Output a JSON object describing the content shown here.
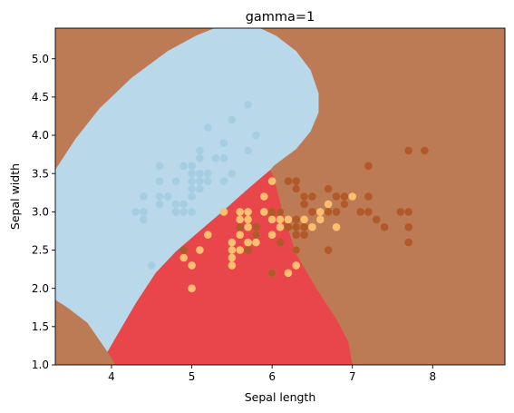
{
  "chart_data": {
    "type": "scatter",
    "title": "gamma=1",
    "xlabel": "Sepal length",
    "ylabel": "Sepal width",
    "xlim": [
      3.3,
      8.9
    ],
    "ylim": [
      1.0,
      5.4
    ],
    "xticks": [
      4,
      5,
      6,
      7,
      8
    ],
    "yticks": [
      1.0,
      1.5,
      2.0,
      2.5,
      3.0,
      3.5,
      4.0,
      4.5,
      5.0
    ],
    "grid": false,
    "legend": "none",
    "regions": [
      {
        "class": "0",
        "color": "#b9d8ea"
      },
      {
        "class": "1",
        "color": "#e8464a"
      },
      {
        "class": "2",
        "color": "#bd7b55"
      }
    ],
    "series": [
      {
        "color": "#a6cee3",
        "points": [
          [
            4.3,
            3.0
          ],
          [
            4.4,
            2.9
          ],
          [
            4.4,
            3.0
          ],
          [
            4.4,
            3.2
          ],
          [
            4.5,
            2.3
          ],
          [
            4.6,
            3.1
          ],
          [
            4.6,
            3.2
          ],
          [
            4.6,
            3.4
          ],
          [
            4.6,
            3.6
          ],
          [
            4.7,
            3.2
          ],
          [
            4.8,
            3.0
          ],
          [
            4.8,
            3.1
          ],
          [
            4.8,
            3.4
          ],
          [
            4.9,
            3.0
          ],
          [
            4.9,
            3.1
          ],
          [
            4.9,
            3.6
          ],
          [
            5.0,
            3.0
          ],
          [
            5.0,
            3.2
          ],
          [
            5.0,
            3.3
          ],
          [
            5.0,
            3.4
          ],
          [
            5.0,
            3.5
          ],
          [
            5.0,
            3.6
          ],
          [
            5.1,
            3.3
          ],
          [
            5.1,
            3.4
          ],
          [
            5.1,
            3.5
          ],
          [
            5.1,
            3.7
          ],
          [
            5.1,
            3.8
          ],
          [
            5.2,
            3.4
          ],
          [
            5.2,
            3.5
          ],
          [
            5.2,
            4.1
          ],
          [
            5.3,
            3.7
          ],
          [
            5.4,
            3.4
          ],
          [
            5.4,
            3.7
          ],
          [
            5.4,
            3.9
          ],
          [
            5.5,
            3.5
          ],
          [
            5.5,
            4.2
          ],
          [
            5.7,
            3.8
          ],
          [
            5.7,
            4.4
          ],
          [
            5.8,
            4.0
          ]
        ]
      },
      {
        "color": "#fdbf6f",
        "points": [
          [
            4.9,
            2.4
          ],
          [
            5.0,
            2.0
          ],
          [
            5.0,
            2.3
          ],
          [
            5.1,
            2.5
          ],
          [
            5.2,
            2.7
          ],
          [
            5.4,
            3.0
          ],
          [
            5.5,
            2.3
          ],
          [
            5.5,
            2.4
          ],
          [
            5.5,
            2.5
          ],
          [
            5.5,
            2.6
          ],
          [
            5.6,
            2.5
          ],
          [
            5.6,
            2.7
          ],
          [
            5.6,
            2.9
          ],
          [
            5.6,
            3.0
          ],
          [
            5.7,
            2.6
          ],
          [
            5.7,
            2.8
          ],
          [
            5.7,
            2.9
          ],
          [
            5.7,
            3.0
          ],
          [
            5.8,
            2.6
          ],
          [
            5.8,
            2.7
          ],
          [
            5.9,
            3.0
          ],
          [
            5.9,
            3.2
          ],
          [
            6.0,
            2.2
          ],
          [
            6.0,
            2.7
          ],
          [
            6.0,
            2.9
          ],
          [
            6.0,
            3.4
          ],
          [
            6.1,
            2.8
          ],
          [
            6.1,
            2.9
          ],
          [
            6.1,
            3.0
          ],
          [
            6.2,
            2.2
          ],
          [
            6.2,
            2.9
          ],
          [
            6.3,
            2.3
          ],
          [
            6.3,
            2.5
          ],
          [
            6.3,
            3.3
          ],
          [
            6.4,
            2.9
          ],
          [
            6.4,
            3.2
          ],
          [
            6.5,
            2.8
          ],
          [
            6.6,
            2.9
          ],
          [
            6.6,
            3.0
          ],
          [
            6.7,
            3.0
          ],
          [
            6.7,
            3.1
          ],
          [
            6.8,
            2.8
          ],
          [
            6.9,
            3.1
          ],
          [
            7.0,
            3.2
          ]
        ]
      },
      {
        "color": "#b15928",
        "points": [
          [
            4.9,
            2.5
          ],
          [
            5.6,
            2.8
          ],
          [
            5.7,
            2.5
          ],
          [
            5.8,
            2.7
          ],
          [
            5.8,
            2.8
          ],
          [
            6.0,
            2.2
          ],
          [
            6.0,
            3.0
          ],
          [
            6.1,
            2.6
          ],
          [
            6.1,
            3.0
          ],
          [
            6.2,
            2.8
          ],
          [
            6.2,
            3.4
          ],
          [
            6.3,
            2.5
          ],
          [
            6.3,
            2.7
          ],
          [
            6.3,
            2.8
          ],
          [
            6.3,
            2.9
          ],
          [
            6.3,
            3.3
          ],
          [
            6.3,
            3.4
          ],
          [
            6.4,
            2.7
          ],
          [
            6.4,
            2.8
          ],
          [
            6.4,
            3.1
          ],
          [
            6.4,
            3.2
          ],
          [
            6.5,
            3.0
          ],
          [
            6.5,
            3.2
          ],
          [
            6.7,
            2.5
          ],
          [
            6.7,
            3.0
          ],
          [
            6.7,
            3.3
          ],
          [
            6.8,
            3.0
          ],
          [
            6.8,
            3.2
          ],
          [
            6.9,
            3.1
          ],
          [
            6.9,
            3.2
          ],
          [
            7.1,
            3.0
          ],
          [
            7.2,
            3.0
          ],
          [
            7.2,
            3.2
          ],
          [
            7.2,
            3.6
          ],
          [
            7.3,
            2.9
          ],
          [
            7.4,
            2.8
          ],
          [
            7.6,
            3.0
          ],
          [
            7.7,
            2.6
          ],
          [
            7.7,
            2.8
          ],
          [
            7.7,
            3.0
          ],
          [
            7.7,
            3.8
          ],
          [
            7.9,
            3.8
          ]
        ]
      }
    ]
  }
}
